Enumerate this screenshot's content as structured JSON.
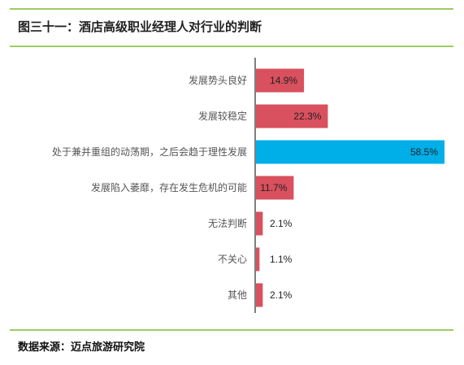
{
  "title": "图三十一：酒店高级职业经理人对行业的判断",
  "source": "数据来源：迈点旅游研究院",
  "colors": {
    "bar_default": "#d9505e",
    "bar_highlight": "#00aee8",
    "axis": "#555555",
    "rule": "#9ccc65"
  },
  "chart_data": {
    "type": "bar",
    "orientation": "horizontal",
    "categories": [
      "发展势头良好",
      "发展较稳定",
      "处于兼并重组的动荡期，之后会趋于理性发展",
      "发展陷入萎靡，存在发生危机的可能",
      "无法判断",
      "不关心",
      "其他"
    ],
    "values": [
      14.9,
      22.3,
      58.5,
      11.7,
      2.1,
      1.1,
      2.1
    ],
    "labels": [
      "14.9%",
      "22.3%",
      "58.5%",
      "11.7%",
      "2.1%",
      "1.1%",
      "2.1%"
    ],
    "highlight_index": 2,
    "xlim": [
      0,
      58.5
    ],
    "grid": false,
    "legend": "none"
  }
}
